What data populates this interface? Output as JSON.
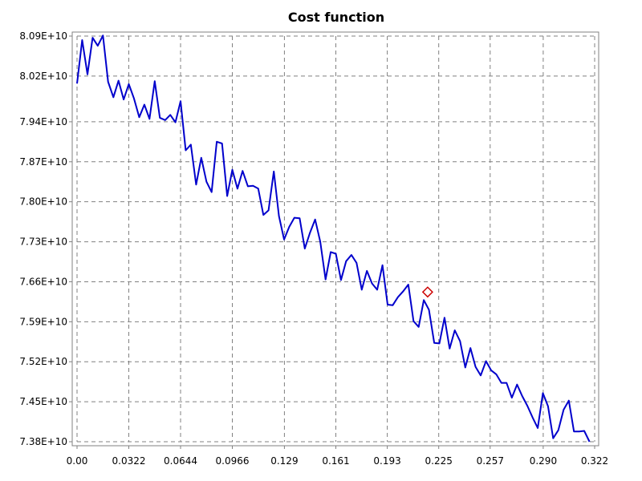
{
  "colors": {
    "line": "#0000cc",
    "marker": "#cc0000",
    "grid": "#808080",
    "background": "#ffffff"
  },
  "chart_data": {
    "type": "line",
    "title": "Cost function",
    "xlabel": "",
    "ylabel": "",
    "xlim": [
      0,
      0.322
    ],
    "ylim": [
      73800000000.0,
      80900000000.0
    ],
    "grid": true,
    "x_ticks": [
      0,
      0.0322,
      0.0644,
      0.0966,
      0.129,
      0.161,
      0.193,
      0.225,
      0.257,
      0.29,
      0.322
    ],
    "x_tick_labels": [
      "0.00",
      "0.0322",
      "0.0644",
      "0.0966",
      "0.129",
      "0.161",
      "0.193",
      "0.225",
      "0.257",
      "0.290",
      "0.322"
    ],
    "y_ticks": [
      73800000000.0,
      74500000000.0,
      75200000000.0,
      75900000000.0,
      76600000000.0,
      77300000000.0,
      78000000000.0,
      78700000000.0,
      79400000000.0,
      80200000000.0,
      80900000000.0
    ],
    "y_tick_labels": [
      "7.38E+10",
      "7.45E+10",
      "7.52E+10",
      "7.59E+10",
      "7.66E+10",
      "7.73E+10",
      "7.80E+10",
      "7.87E+10",
      "7.94E+10",
      "8.02E+10",
      "8.09E+10"
    ],
    "series": [
      {
        "points": [
          [
            0.0,
            80070000000.0
          ],
          [
            0.0032,
            80830000000.0
          ],
          [
            0.0065,
            80230000000.0
          ],
          [
            0.0097,
            80870000000.0
          ],
          [
            0.0129,
            80730000000.0
          ],
          [
            0.0161,
            80910000000.0
          ],
          [
            0.0193,
            80100000000.0
          ],
          [
            0.0226,
            79830000000.0
          ],
          [
            0.0258,
            80120000000.0
          ],
          [
            0.029,
            79790000000.0
          ],
          [
            0.0322,
            80060000000.0
          ],
          [
            0.0354,
            79810000000.0
          ],
          [
            0.0387,
            79480000000.0
          ],
          [
            0.0419,
            79700000000.0
          ],
          [
            0.0451,
            79450000000.0
          ],
          [
            0.0483,
            80110000000.0
          ],
          [
            0.0515,
            79470000000.0
          ],
          [
            0.0548,
            79430000000.0
          ],
          [
            0.058,
            79520000000.0
          ],
          [
            0.0612,
            79390000000.0
          ],
          [
            0.0644,
            79760000000.0
          ],
          [
            0.0676,
            78900000000.0
          ],
          [
            0.0708,
            79000000000.0
          ],
          [
            0.0741,
            78300000000.0
          ],
          [
            0.0773,
            78770000000.0
          ],
          [
            0.0805,
            78350000000.0
          ],
          [
            0.0837,
            78170000000.0
          ],
          [
            0.0869,
            79050000000.0
          ],
          [
            0.0902,
            79020000000.0
          ],
          [
            0.0934,
            78100000000.0
          ],
          [
            0.0966,
            78560000000.0
          ],
          [
            0.0998,
            78230000000.0
          ],
          [
            0.103,
            78540000000.0
          ],
          [
            0.1063,
            78270000000.0
          ],
          [
            0.1095,
            78280000000.0
          ],
          [
            0.1127,
            78230000000.0
          ],
          [
            0.1159,
            77770000000.0
          ],
          [
            0.1191,
            77850000000.0
          ],
          [
            0.1224,
            78530000000.0
          ],
          [
            0.1256,
            77750000000.0
          ],
          [
            0.1288,
            77340000000.0
          ],
          [
            0.132,
            77560000000.0
          ],
          [
            0.1352,
            77720000000.0
          ],
          [
            0.1385,
            77710000000.0
          ],
          [
            0.1417,
            77180000000.0
          ],
          [
            0.1449,
            77460000000.0
          ],
          [
            0.1481,
            77690000000.0
          ],
          [
            0.1513,
            77300000000.0
          ],
          [
            0.1546,
            76640000000.0
          ],
          [
            0.1578,
            77120000000.0
          ],
          [
            0.161,
            77090000000.0
          ],
          [
            0.1642,
            76630000000.0
          ],
          [
            0.1674,
            76960000000.0
          ],
          [
            0.1707,
            77070000000.0
          ],
          [
            0.1739,
            76930000000.0
          ],
          [
            0.1771,
            76460000000.0
          ],
          [
            0.1803,
            76790000000.0
          ],
          [
            0.1835,
            76570000000.0
          ],
          [
            0.1867,
            76460000000.0
          ],
          [
            0.19,
            76890000000.0
          ],
          [
            0.1932,
            76200000000.0
          ],
          [
            0.1964,
            76190000000.0
          ],
          [
            0.1996,
            76330000000.0
          ],
          [
            0.2028,
            76430000000.0
          ],
          [
            0.2061,
            76550000000.0
          ],
          [
            0.2093,
            75910000000.0
          ],
          [
            0.2125,
            75810000000.0
          ],
          [
            0.2157,
            76280000000.0
          ],
          [
            0.2189,
            76110000000.0
          ],
          [
            0.2222,
            75530000000.0
          ],
          [
            0.2254,
            75520000000.0
          ],
          [
            0.2286,
            75970000000.0
          ],
          [
            0.2318,
            75430000000.0
          ],
          [
            0.235,
            75750000000.0
          ],
          [
            0.2383,
            75560000000.0
          ],
          [
            0.2415,
            75100000000.0
          ],
          [
            0.2447,
            75440000000.0
          ],
          [
            0.2479,
            75110000000.0
          ],
          [
            0.2511,
            74960000000.0
          ],
          [
            0.2544,
            75210000000.0
          ],
          [
            0.2576,
            75050000000.0
          ],
          [
            0.2608,
            74980000000.0
          ],
          [
            0.264,
            74830000000.0
          ],
          [
            0.2672,
            74830000000.0
          ],
          [
            0.2705,
            74570000000.0
          ],
          [
            0.2737,
            74800000000.0
          ],
          [
            0.2769,
            74600000000.0
          ],
          [
            0.2801,
            74430000000.0
          ],
          [
            0.2833,
            74230000000.0
          ],
          [
            0.2866,
            74040000000.0
          ],
          [
            0.2898,
            74650000000.0
          ],
          [
            0.293,
            74420000000.0
          ],
          [
            0.2962,
            73860000000.0
          ],
          [
            0.2994,
            74000000000.0
          ],
          [
            0.3027,
            74360000000.0
          ],
          [
            0.3059,
            74520000000.0
          ],
          [
            0.3091,
            73980000000.0
          ],
          [
            0.3123,
            73980000000.0
          ],
          [
            0.3155,
            73990000000.0
          ],
          [
            0.3188,
            73800000000.0
          ]
        ]
      }
    ],
    "marker_point": [
      0.2181,
      76420000000.0
    ]
  }
}
